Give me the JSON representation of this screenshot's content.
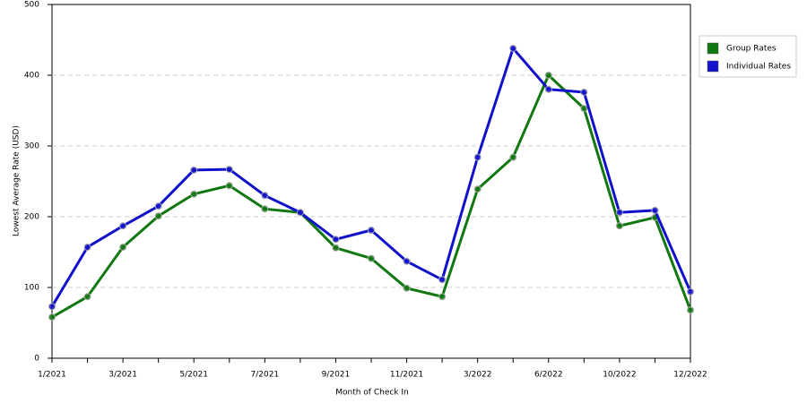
{
  "chart_data": {
    "type": "line",
    "x_label": "Month of Check In",
    "y_label": "Lowest Average Rate (USD)",
    "categories": [
      "1/2021",
      null,
      "3/2021",
      null,
      "5/2021",
      null,
      "7/2021",
      null,
      "9/2021",
      null,
      "11/2021",
      null,
      "3/2022",
      null,
      "6/2022",
      null,
      "10/2022",
      null,
      "12/2022"
    ],
    "series": [
      {
        "name": "Group Rates",
        "color": "#117711",
        "values": [
          58,
          87,
          157,
          201,
          232,
          244,
          211,
          206,
          156,
          141,
          99,
          87,
          239,
          284,
          400,
          353,
          187,
          199,
          68
        ]
      },
      {
        "name": "Individual Rates",
        "color": "#1111cc",
        "values": [
          73,
          157,
          187,
          215,
          266,
          267,
          230,
          206,
          168,
          181,
          137,
          111,
          284,
          438,
          380,
          376,
          206,
          209,
          94
        ]
      }
    ],
    "ylim": [
      0,
      500
    ],
    "yticks": [
      0,
      100,
      200,
      300,
      400,
      500
    ],
    "grid": true,
    "legend": "right"
  }
}
